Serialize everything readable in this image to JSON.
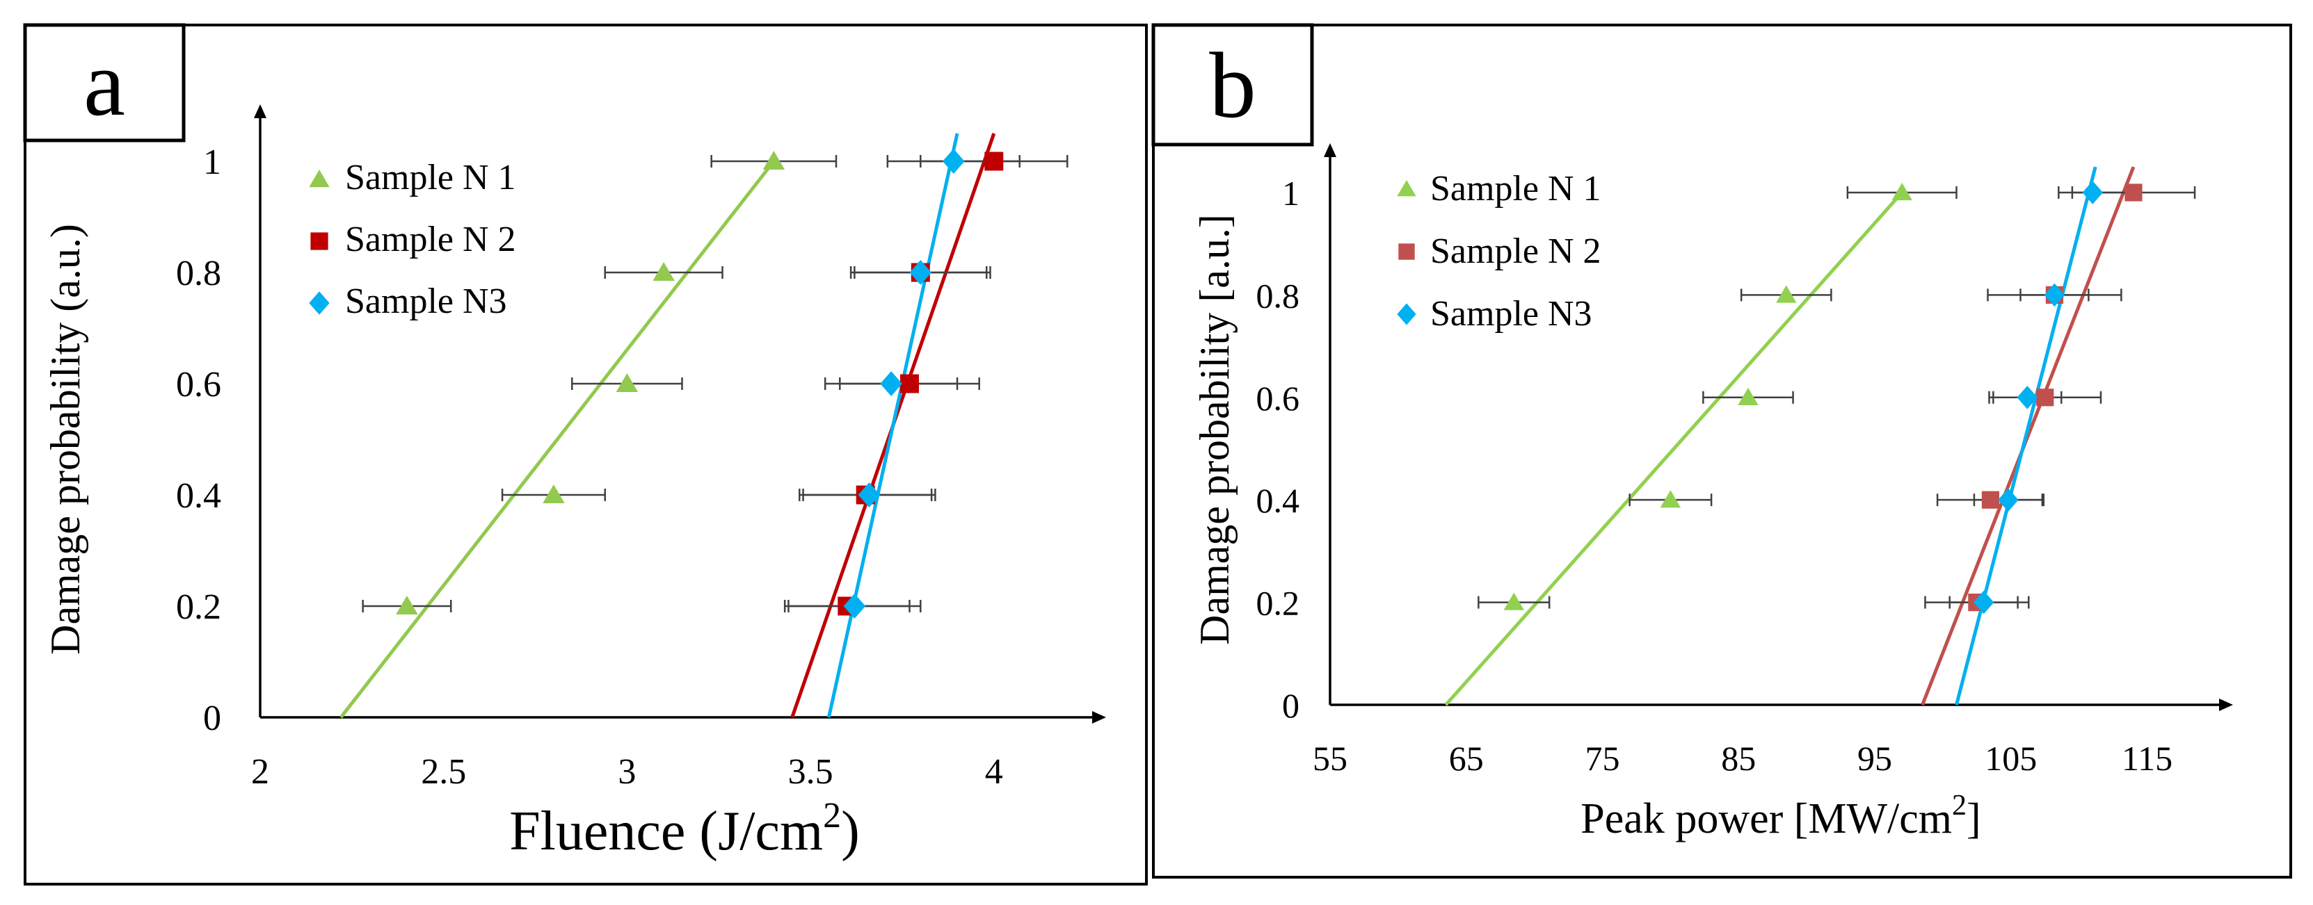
{
  "colors": {
    "green": "#92c94e",
    "red": "#c00000",
    "lightred": "#c0504d",
    "blue": "#00b0f0",
    "errorbar": "#404040",
    "black": "#000000"
  },
  "chart_data": [
    {
      "type": "scatter",
      "panel_label": "a",
      "title": "",
      "xlabel": "Fluence (J/cm2)",
      "xlabel_main": "Fluence (J/cm",
      "xlabel_sup": "2",
      "xlabel_tail": ")",
      "ylabel": "Damage  probability (a.u.)",
      "xlim": [
        2,
        4.3
      ],
      "ylim": [
        0,
        1.08
      ],
      "x_ticks": [
        2,
        2.5,
        3,
        3.5,
        4
      ],
      "x_tick_labels": [
        "2",
        "2.5",
        "3",
        "3.5",
        "4"
      ],
      "y_ticks": [
        0,
        0.2,
        0.4,
        0.6,
        0.8,
        1
      ],
      "y_tick_labels": [
        "0",
        "0.2",
        "0.4",
        "0.6",
        "0.8",
        "1"
      ],
      "legend_position": "top-left",
      "series": [
        {
          "name": "Sample N 1",
          "marker": "triangle",
          "color": "#92c94e",
          "points": [
            {
              "x": 2.4,
              "y": 0.2,
              "xerr": 0.12
            },
            {
              "x": 2.8,
              "y": 0.4,
              "xerr": 0.14
            },
            {
              "x": 3.0,
              "y": 0.6,
              "xerr": 0.15
            },
            {
              "x": 3.1,
              "y": 0.8,
              "xerr": 0.16
            },
            {
              "x": 3.4,
              "y": 1.0,
              "xerr": 0.17
            }
          ],
          "fit": {
            "x1": 2.22,
            "y1": 0,
            "x2": 3.4,
            "y2": 1.0,
            "color": "#92c94e"
          }
        },
        {
          "name": "Sample N 2",
          "marker": "square",
          "color": "#c00000",
          "points": [
            {
              "x": 3.6,
              "y": 0.2,
              "xerr": 0.17
            },
            {
              "x": 3.65,
              "y": 0.4,
              "xerr": 0.18
            },
            {
              "x": 3.77,
              "y": 0.6,
              "xerr": 0.19
            },
            {
              "x": 3.8,
              "y": 0.8,
              "xerr": 0.19
            },
            {
              "x": 4.0,
              "y": 1.0,
              "xerr": 0.2
            }
          ],
          "fit": {
            "x1": 3.45,
            "y1": 0,
            "x2": 4.0,
            "y2": 1.05,
            "color": "#c00000"
          }
        },
        {
          "name": "Sample N3",
          "marker": "diamond",
          "color": "#00b0f0",
          "points": [
            {
              "x": 3.62,
              "y": 0.2,
              "xerr": 0.18
            },
            {
              "x": 3.66,
              "y": 0.4,
              "xerr": 0.18
            },
            {
              "x": 3.72,
              "y": 0.6,
              "xerr": 0.18
            },
            {
              "x": 3.8,
              "y": 0.8,
              "xerr": 0.18
            },
            {
              "x": 3.89,
              "y": 1.0,
              "xerr": 0.18
            }
          ],
          "fit": {
            "x1": 3.55,
            "y1": 0,
            "x2": 3.9,
            "y2": 1.05,
            "color": "#00b0f0"
          }
        }
      ]
    },
    {
      "type": "scatter",
      "panel_label": "b",
      "title": "",
      "xlabel": "Peak power [MW/cm2]",
      "xlabel_main": "Peak power [MW/cm",
      "xlabel_sup": "2",
      "xlabel_tail": "]",
      "ylabel": "Damage  probability [a.u.]",
      "xlim": [
        55,
        121
      ],
      "ylim": [
        0,
        1.08
      ],
      "x_ticks": [
        55,
        65,
        75,
        85,
        95,
        105,
        115
      ],
      "x_tick_labels": [
        "55",
        "65",
        "75",
        "85",
        "95",
        "105",
        "115"
      ],
      "y_ticks": [
        0,
        0.2,
        0.4,
        0.6,
        0.8,
        1
      ],
      "y_tick_labels": [
        "0",
        "0.2",
        "0.4",
        "0.6",
        "0.8",
        "1"
      ],
      "legend_position": "top-left",
      "series": [
        {
          "name": "Sample N 1",
          "marker": "triangle",
          "color": "#92d050",
          "points": [
            {
              "x": 68.5,
              "y": 0.2,
              "xerr": 2.6
            },
            {
              "x": 80,
              "y": 0.4,
              "xerr": 3.0
            },
            {
              "x": 85.7,
              "y": 0.6,
              "xerr": 3.3
            },
            {
              "x": 88.5,
              "y": 0.8,
              "xerr": 3.3
            },
            {
              "x": 97,
              "y": 1.0,
              "xerr": 4.0
            }
          ],
          "fit": {
            "x1": 63.5,
            "y1": 0,
            "x2": 97,
            "y2": 1.0,
            "color": "#92d050"
          }
        },
        {
          "name": "Sample N 2",
          "marker": "square",
          "color": "#c0504d",
          "points": [
            {
              "x": 102.5,
              "y": 0.2,
              "xerr": 3.8
            },
            {
              "x": 103.5,
              "y": 0.4,
              "xerr": 3.9
            },
            {
              "x": 107.5,
              "y": 0.6,
              "xerr": 4.1
            },
            {
              "x": 108.2,
              "y": 0.8,
              "xerr": 4.9
            },
            {
              "x": 114,
              "y": 1.0,
              "xerr": 4.5
            }
          ],
          "fit": {
            "x1": 98.5,
            "y1": 0,
            "x2": 114,
            "y2": 1.05,
            "color": "#c0504d"
          }
        },
        {
          "name": "Sample N3",
          "marker": "diamond",
          "color": "#00b0f0",
          "points": [
            {
              "x": 103,
              "y": 0.2,
              "xerr": 2.5
            },
            {
              "x": 104.8,
              "y": 0.4,
              "xerr": 2.5
            },
            {
              "x": 106.2,
              "y": 0.6,
              "xerr": 2.5
            },
            {
              "x": 108.2,
              "y": 0.8,
              "xerr": 2.5
            },
            {
              "x": 111,
              "y": 1.0,
              "xerr": 2.5
            }
          ],
          "fit": {
            "x1": 101,
            "y1": 0,
            "x2": 111.2,
            "y2": 1.05,
            "color": "#00b0f0"
          }
        }
      ]
    }
  ]
}
